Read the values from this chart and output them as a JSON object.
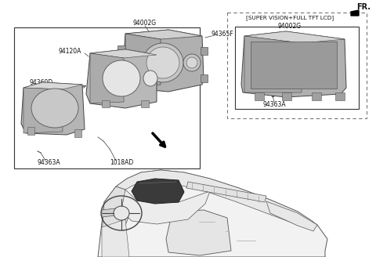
{
  "background_color": "#ffffff",
  "fig_width": 4.8,
  "fig_height": 3.28,
  "dpi": 100,
  "fr_label": "FR.",
  "part_numbers": {
    "94002G_top": "94002G",
    "94365F": "94365F",
    "94120A": "94120A",
    "94360D": "94360D",
    "94363A_left": "94363A",
    "1018AD": "1018AD",
    "94002G_box": "94002G",
    "94363A_right": "94363A"
  },
  "super_vision_label": "[SUPER VISION+FULL TFT LCD]",
  "lc": "#555555",
  "solid_box_color": "#444444",
  "dashed_box_color": "#666666"
}
